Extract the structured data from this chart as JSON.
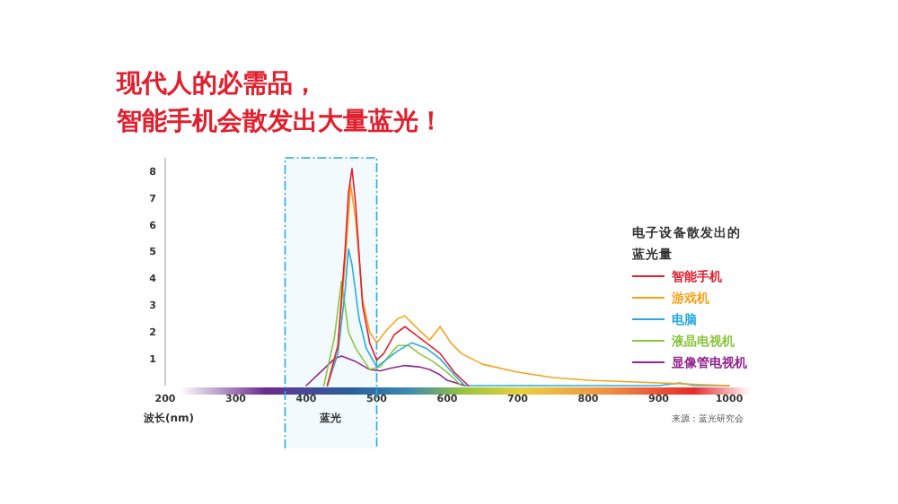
{
  "chart_data": {
    "type": "line",
    "title": "现代人的必需品，智能手机会散发出大量蓝光！",
    "xlabel": "波长(nm)",
    "legend_title": "电子设备散发出的蓝光量",
    "legend": "right",
    "grid": false,
    "marker": "none",
    "line_style": "solid",
    "xlim": [
      200,
      1000
    ],
    "ylim": [
      0,
      8.5
    ],
    "xticks": [
      200,
      300,
      400,
      500,
      600,
      700,
      800,
      900,
      1000
    ],
    "yticks": [
      1,
      2,
      3,
      4,
      5,
      6,
      7,
      8
    ],
    "bands": [
      {
        "axis": "x",
        "from": 370,
        "to": 500,
        "label": "蓝光",
        "color": "#29abe2"
      }
    ],
    "annotations": [
      "来源：蓝光研究会"
    ],
    "series": [
      {
        "name": "智能手机",
        "color": "#e3202e",
        "x": [
          430,
          445,
          455,
          460,
          465,
          470,
          480,
          490,
          500,
          510,
          525,
          540,
          555,
          575,
          590,
          610,
          630
        ],
        "values": [
          0,
          1.5,
          5,
          7.2,
          8.1,
          6.8,
          3,
          1.6,
          0.95,
          1.2,
          1.9,
          2.2,
          1.9,
          1.5,
          1.2,
          0.5,
          0
        ]
      },
      {
        "name": "游戏机",
        "color": "#f7a21b",
        "x": [
          430,
          445,
          455,
          463,
          470,
          480,
          490,
          500,
          515,
          530,
          540,
          555,
          575,
          590,
          605,
          620,
          650,
          700,
          750,
          800,
          850,
          900,
          950,
          1000
        ],
        "values": [
          0,
          1.5,
          4.5,
          7.5,
          6.2,
          3.2,
          2,
          1.6,
          2.1,
          2.5,
          2.6,
          2.2,
          1.7,
          2.2,
          1.6,
          1.2,
          0.8,
          0.5,
          0.3,
          0.2,
          0.15,
          0.1,
          0.05,
          0
        ]
      },
      {
        "name": "电脑",
        "color": "#29abe2",
        "x": [
          430,
          445,
          455,
          460,
          465,
          475,
          485,
          500,
          515,
          530,
          550,
          570,
          590,
          610,
          625,
          700,
          800,
          900,
          930,
          950,
          1000
        ],
        "values": [
          0,
          1.2,
          3.5,
          5.1,
          4.5,
          2.5,
          1.4,
          0.7,
          1,
          1.3,
          1.6,
          1.4,
          1,
          0.4,
          0,
          0,
          0,
          0,
          0.1,
          0,
          0
        ]
      },
      {
        "name": "液晶电视机",
        "color": "#8cc63f",
        "x": [
          425,
          440,
          450,
          455,
          460,
          470,
          480,
          490,
          505,
          520,
          530,
          545,
          560,
          580,
          600,
          620
        ],
        "values": [
          0,
          1.8,
          3.9,
          3,
          2,
          1.4,
          1,
          0.6,
          0.7,
          1.2,
          1.5,
          1.5,
          1.2,
          0.9,
          0.5,
          0
        ]
      },
      {
        "name": "显像管电视机",
        "color": "#93278f",
        "x": [
          400,
          420,
          440,
          450,
          470,
          490,
          505,
          520,
          540,
          560,
          575,
          590,
          600,
          625
        ],
        "values": [
          0,
          0.5,
          1,
          1.1,
          0.9,
          0.6,
          0.55,
          0.65,
          0.75,
          0.7,
          0.6,
          0.4,
          0.2,
          0
        ]
      }
    ]
  }
}
